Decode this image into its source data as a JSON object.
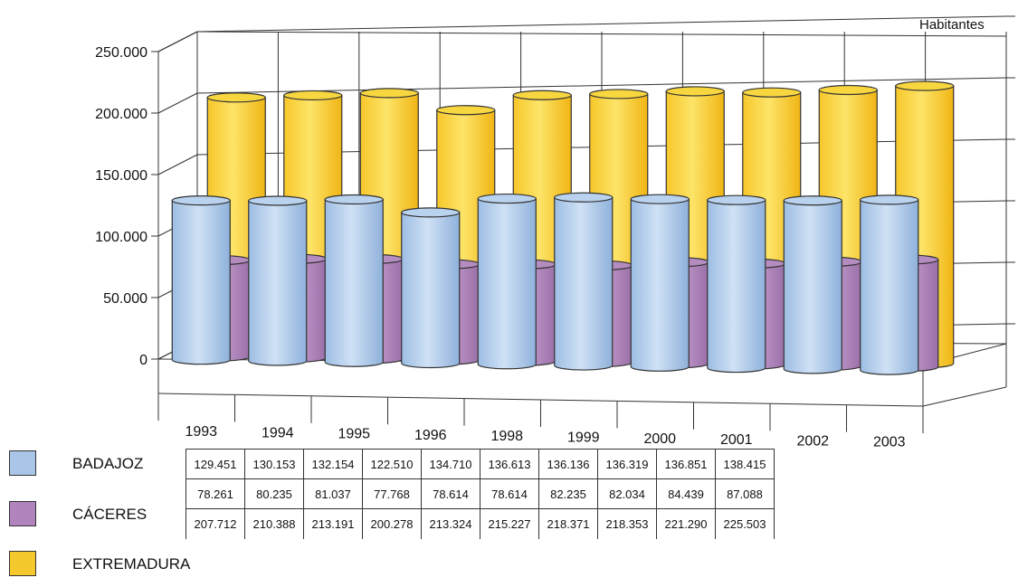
{
  "chart_data": {
    "type": "bar",
    "style": "3d-cylinder",
    "unit_label": "Habitantes",
    "categories": [
      "1993",
      "1994",
      "1995",
      "1996",
      "1998",
      "1999",
      "2000",
      "2001",
      "2002",
      "2003"
    ],
    "ylim": [
      0,
      250000
    ],
    "y_ticks": [
      "0",
      "50.000",
      "100.000",
      "150.000",
      "200.000",
      "250.000"
    ],
    "grid": true,
    "legend_placement": "bottom-left",
    "series": [
      {
        "name": "BADAJOZ",
        "color": "#a9c6e8",
        "values": [
          129451,
          130153,
          132154,
          122510,
          134710,
          136613,
          136136,
          136319,
          136851,
          138415
        ],
        "labels": [
          "129.451",
          "130.153",
          "132.154",
          "122.510",
          "134.710",
          "136.613",
          "136.136",
          "136.319",
          "136.851",
          "138.415"
        ]
      },
      {
        "name": "CÁCERES",
        "color": "#b184bd",
        "values": [
          78261,
          80235,
          81037,
          77768,
          78614,
          78614,
          82235,
          82034,
          84439,
          87088
        ],
        "labels": [
          "78.261",
          "80.235",
          "81.037",
          "77.768",
          "78.614",
          "78.614",
          "82.235",
          "82.034",
          "84.439",
          "87.088"
        ]
      },
      {
        "name": "EXTREMADURA",
        "color": "#f5c92e",
        "values": [
          207712,
          210388,
          213191,
          200278,
          213324,
          215227,
          218371,
          218353,
          221290,
          225503
        ],
        "labels": [
          "207.712",
          "210.388",
          "213.191",
          "200.278",
          "213.324",
          "215.227",
          "218.371",
          "218.353",
          "221.290",
          "225.503"
        ]
      }
    ]
  }
}
